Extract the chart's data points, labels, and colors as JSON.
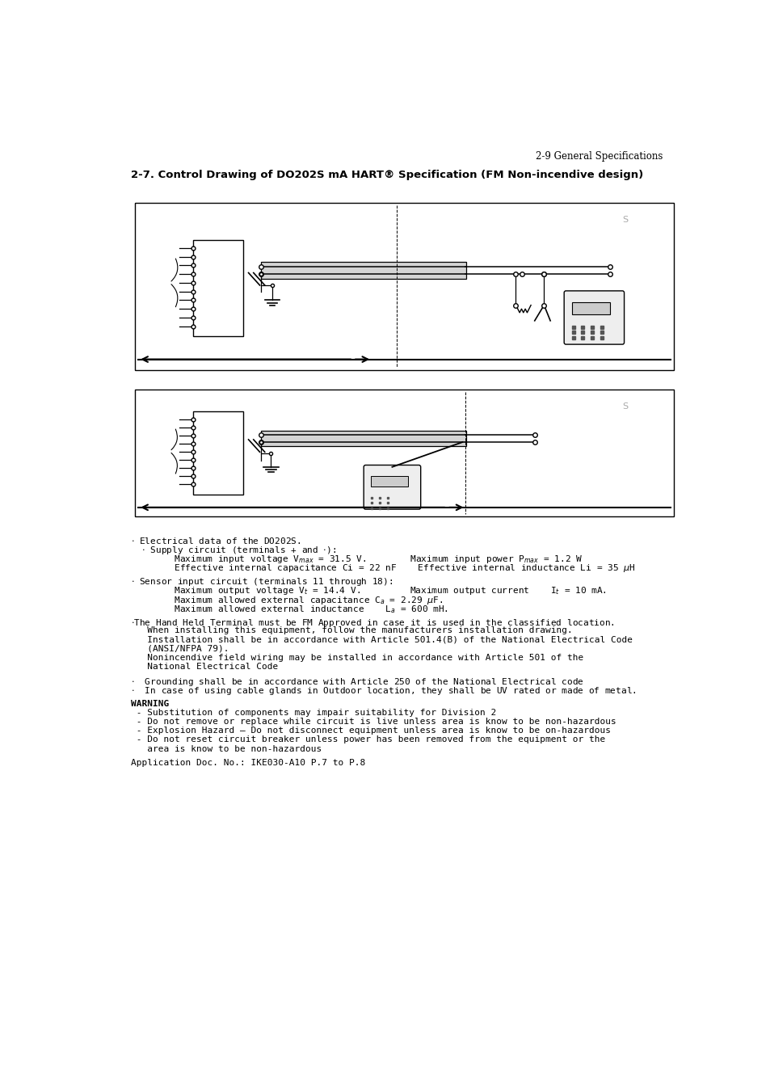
{
  "page_header": "2-9 General Specifications",
  "section_title": "2-7. Control Drawing of DO202S mA HART® Specification (FM Non-incendive design)",
  "bg_color": "#ffffff",
  "text_color": "#000000",
  "body_lines": [
    [
      "· Electrical data of the DO202S.",
      55,
      0,
      false
    ],
    [
      "  · Supply circuit (terminals + and ·):",
      55,
      0,
      false
    ],
    [
      "        Maximum input voltage V",
      55,
      14,
      false
    ],
    [
      "        Effective internal capacitance Ci = 22 nF    Effective internal inductance Li = 35 μH",
      55,
      14,
      false
    ],
    [
      "",
      55,
      0,
      false
    ],
    [
      "· Sensor input circuit (terminals 11 through 18):",
      55,
      0,
      false
    ],
    [
      "        Maximum output voltage V",
      55,
      14,
      false
    ],
    [
      "        Maximum allowed external capacitance C",
      55,
      14,
      false
    ],
    [
      "        Maximum allowed external inductance    L",
      55,
      14,
      false
    ],
    [
      "",
      55,
      0,
      false
    ],
    [
      "·The Hand Held Terminal must be FM Approved in case it is used in the classified location.",
      55,
      0,
      false
    ],
    [
      "   When installing this equipment, follow the manufacturers installation drawing.",
      55,
      0,
      false
    ],
    [
      "   Installation shall be in accordance with Article 501.4(B) of the National Electrical Code",
      55,
      0,
      false
    ],
    [
      "   (ANSI/NFPA 79).",
      55,
      0,
      false
    ],
    [
      "   Nonincendive field wiring may be installed in accordance with Article 501 of the",
      55,
      0,
      false
    ],
    [
      "   National Electrical Code",
      55,
      0,
      false
    ],
    [
      "",
      55,
      0,
      false
    ],
    [
      "·  Grounding shall be in accordance with Article 250 of the National Electrical code",
      55,
      0,
      false
    ],
    [
      "·  In case of using cable glands in Outdoor location, they shall be UV rated or made of metal.",
      55,
      0,
      false
    ],
    [
      "",
      55,
      0,
      false
    ],
    [
      "WARNING",
      55,
      0,
      true
    ],
    [
      " - Substitution of components may impair suitability for Division 2",
      55,
      0,
      false
    ],
    [
      " - Do not remove or replace while circuit is live unless area is know to be non-hazardous",
      55,
      0,
      false
    ],
    [
      " - Explosion Hazard – Do not disconnect equipment unless area is know to be on-hazardous",
      55,
      0,
      false
    ],
    [
      " - Do not reset circuit breaker unless power has been removed from the equipment or the",
      55,
      0,
      false
    ],
    [
      "   area is know to be non-hazardous",
      55,
      0,
      false
    ],
    [
      "",
      55,
      0,
      false
    ],
    [
      "Application Doc. No.: IKE030-A10 P.7 to P.8",
      55,
      0,
      false
    ]
  ]
}
